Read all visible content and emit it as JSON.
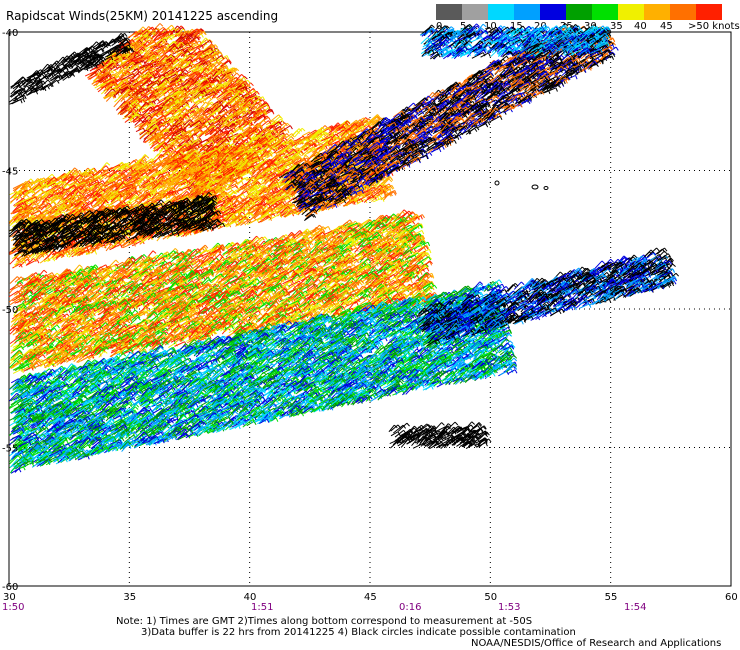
{
  "map_title": "Rapidscat Winds(25KM) 20141225 ascending",
  "legend": {
    "labels": [
      "0",
      "5",
      "10",
      "15",
      "20",
      "25",
      "30",
      "35",
      "40",
      "45",
      ">50 knots"
    ],
    "colors": [
      "#5a5a5a",
      "#a0a0a0",
      "#00d8ff",
      "#00a0ff",
      "#0000e0",
      "#00a000",
      "#00e000",
      "#f0f000",
      "#ffb000",
      "#ff7000",
      "#ff2000",
      "#d00000",
      "#905030",
      "#c87878",
      "#ff00ff",
      "#c000c0",
      "#800080",
      "#400040"
    ]
  },
  "axes": {
    "lat_labels": [
      "-40",
      "-45",
      "-50",
      "-55",
      "-60"
    ],
    "lon_labels": [
      "30",
      "35",
      "40",
      "45",
      "50",
      "55",
      "60"
    ],
    "time_labels": [
      "1:50",
      "1:51",
      "0:16",
      "1:53",
      "1:54"
    ]
  },
  "notes": {
    "line1": "Note: 1) Times are GMT 2)Times along bottom correspond to measurement at -50S",
    "line2": "3)Data buffer is 22 hrs from 20141225 4) Black circles indicate possible contamination",
    "credit": "NOAA/NESDIS/Office of Research and Applications"
  }
}
